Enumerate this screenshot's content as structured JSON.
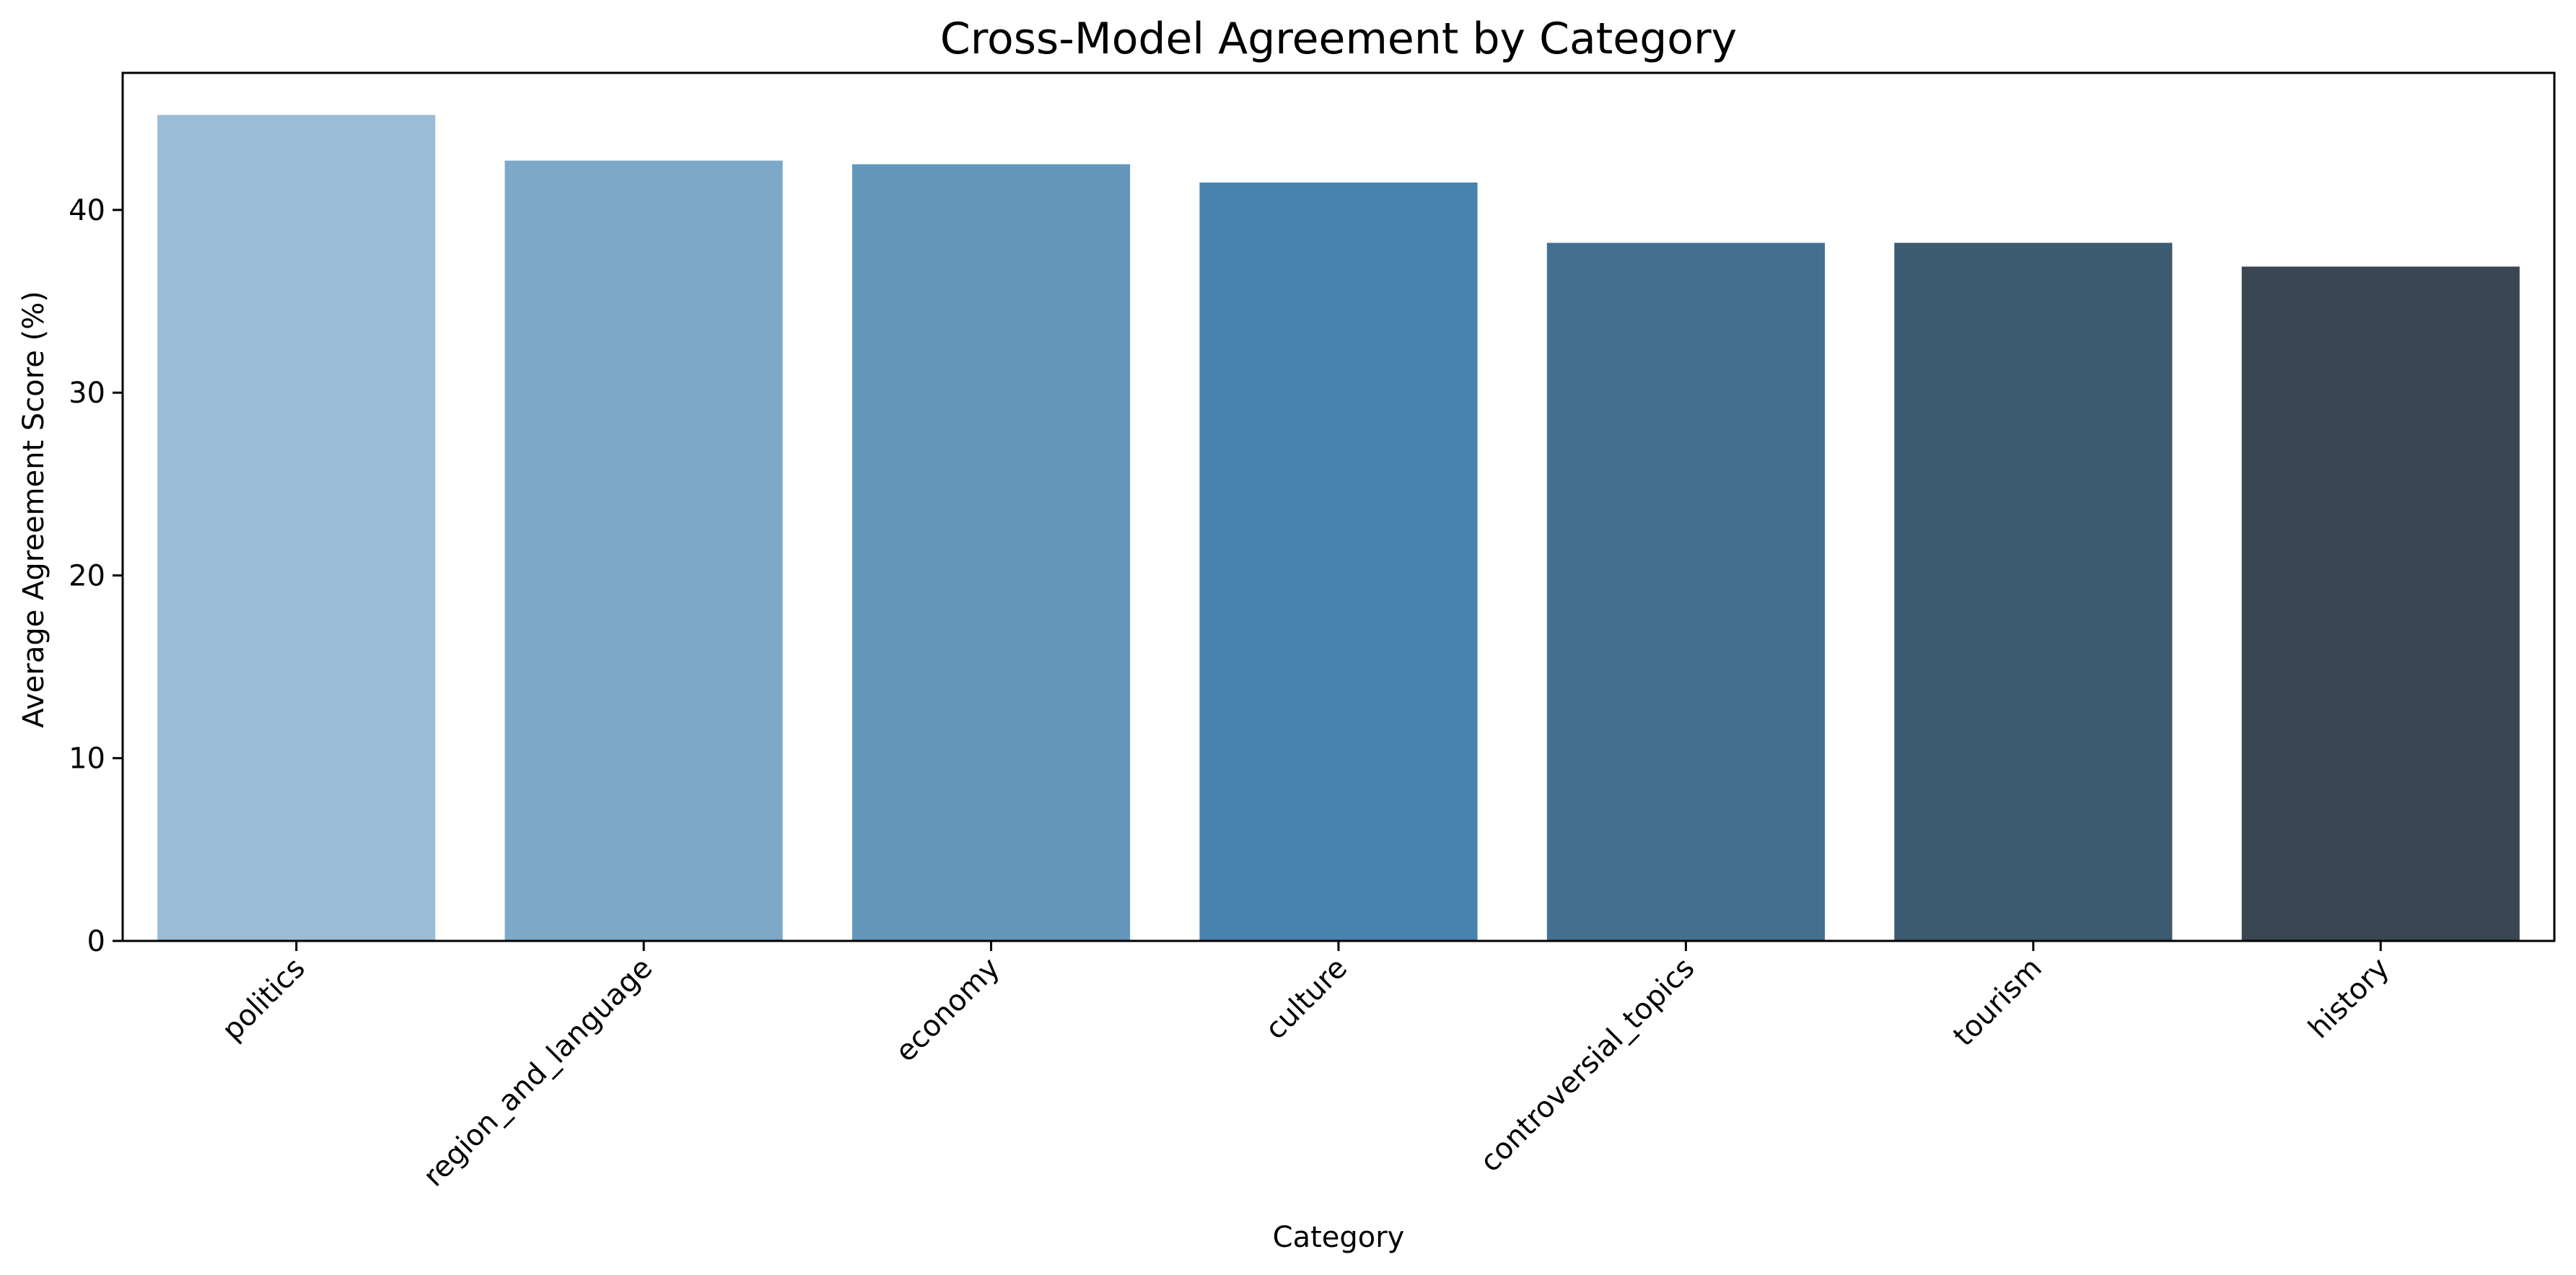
{
  "chart_data": {
    "type": "bar",
    "title": "Cross-Model Agreement by Category",
    "xlabel": "Category",
    "ylabel": "Average Agreement Score (%)",
    "categories": [
      "politics",
      "region_and_language",
      "economy",
      "culture",
      "controversial_topics",
      "tourism",
      "history"
    ],
    "values": [
      45.2,
      42.7,
      42.5,
      41.5,
      38.2,
      38.2,
      36.9
    ],
    "colors": [
      "#9bbcd6",
      "#7ea8c8",
      "#6497bb",
      "#4883b0",
      "#447090",
      "#3c5a70",
      "#3a4652"
    ],
    "ylim": [
      0,
      47.5
    ],
    "yticks": [
      0,
      10,
      20,
      30,
      40
    ],
    "xtick_rotation_deg": 45,
    "grid": false,
    "legend": "none"
  }
}
